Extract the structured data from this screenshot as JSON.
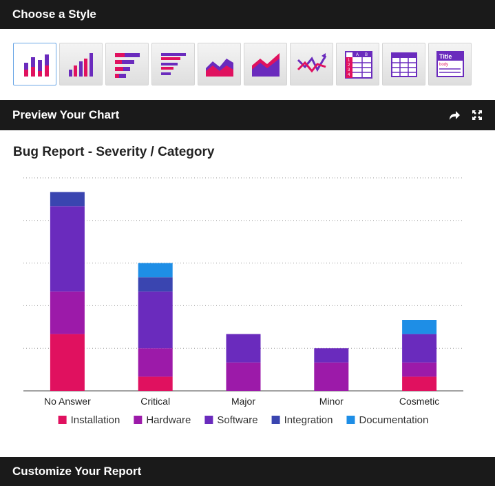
{
  "headers": {
    "style": "Choose a Style",
    "preview": "Preview Your Chart",
    "customize": "Customize Your Report"
  },
  "style_options": [
    {
      "name": "vertical-stacked-bar",
      "selected": true
    },
    {
      "name": "vertical-bar",
      "selected": false
    },
    {
      "name": "horizontal-stacked-bar",
      "selected": false
    },
    {
      "name": "horizontal-bar",
      "selected": false
    },
    {
      "name": "area",
      "selected": false
    },
    {
      "name": "stacked-area",
      "selected": false
    },
    {
      "name": "line",
      "selected": false
    },
    {
      "name": "pivot-table",
      "selected": false
    },
    {
      "name": "table",
      "selected": false
    },
    {
      "name": "text-report",
      "selected": false
    }
  ],
  "style_icon_text": {
    "title": "Title",
    "body": "body",
    "col_a": "A",
    "col_b": "B",
    "rows": [
      "1",
      "2",
      "3",
      "4"
    ]
  },
  "preview_icons": [
    "share-icon",
    "expand-icon"
  ],
  "chart_data": {
    "type": "bar",
    "stacked": true,
    "title": "Bug Report - Severity / Category",
    "categories": [
      "No Answer",
      "Critical",
      "Major",
      "Minor",
      "Cosmetic"
    ],
    "ylim": [
      0,
      15
    ],
    "grid": true,
    "legend_position": "bottom",
    "series": [
      {
        "name": "Installation",
        "color": "#e0115f",
        "values": [
          4,
          1,
          0,
          0,
          1
        ]
      },
      {
        "name": "Hardware",
        "color": "#9c1aa9",
        "values": [
          3,
          2,
          2,
          2,
          1
        ]
      },
      {
        "name": "Software",
        "color": "#6a2bbd",
        "values": [
          6,
          4,
          2,
          1,
          2
        ]
      },
      {
        "name": "Integration",
        "color": "#3a45b0",
        "values": [
          1,
          1,
          0,
          0,
          0
        ]
      },
      {
        "name": "Documentation",
        "color": "#1e8ee6",
        "values": [
          0,
          1,
          0,
          0,
          1
        ]
      }
    ]
  }
}
